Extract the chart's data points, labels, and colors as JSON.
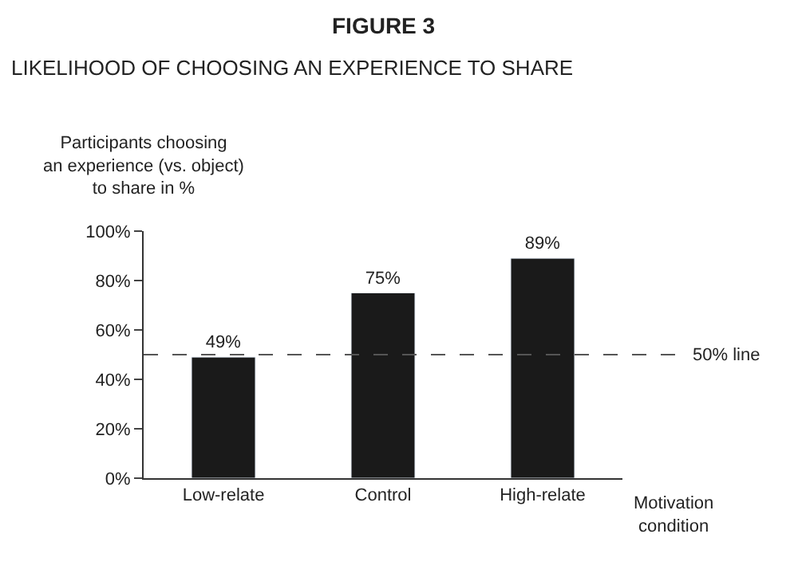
{
  "chart_data": {
    "type": "bar",
    "title": "FIGURE 3",
    "subtitle": "LIKELIHOOD OF CHOOSING AN EXPERIENCE TO SHARE",
    "ylabel": "Participants choosing\nan experience (vs. object)\nto share in %",
    "xlabel": "Motivation\ncondition",
    "categories": [
      "Low-relate",
      "Control",
      "High-relate"
    ],
    "values": [
      49,
      75,
      89
    ],
    "value_labels": [
      "49%",
      "75%",
      "89%"
    ],
    "color": "#1a1a1a",
    "ylim": [
      0,
      100
    ],
    "yticks": [
      {
        "value": 0,
        "label": "0%"
      },
      {
        "value": 20,
        "label": "20%"
      },
      {
        "value": 40,
        "label": "40%"
      },
      {
        "value": 60,
        "label": "60%"
      },
      {
        "value": 80,
        "label": "80%"
      },
      {
        "value": 100,
        "label": "100%"
      }
    ],
    "ref_lines": [
      {
        "axis": "y",
        "value": 50,
        "label": "50% line",
        "line_style": "dashed",
        "color": "#555555"
      }
    ],
    "legend": false
  }
}
